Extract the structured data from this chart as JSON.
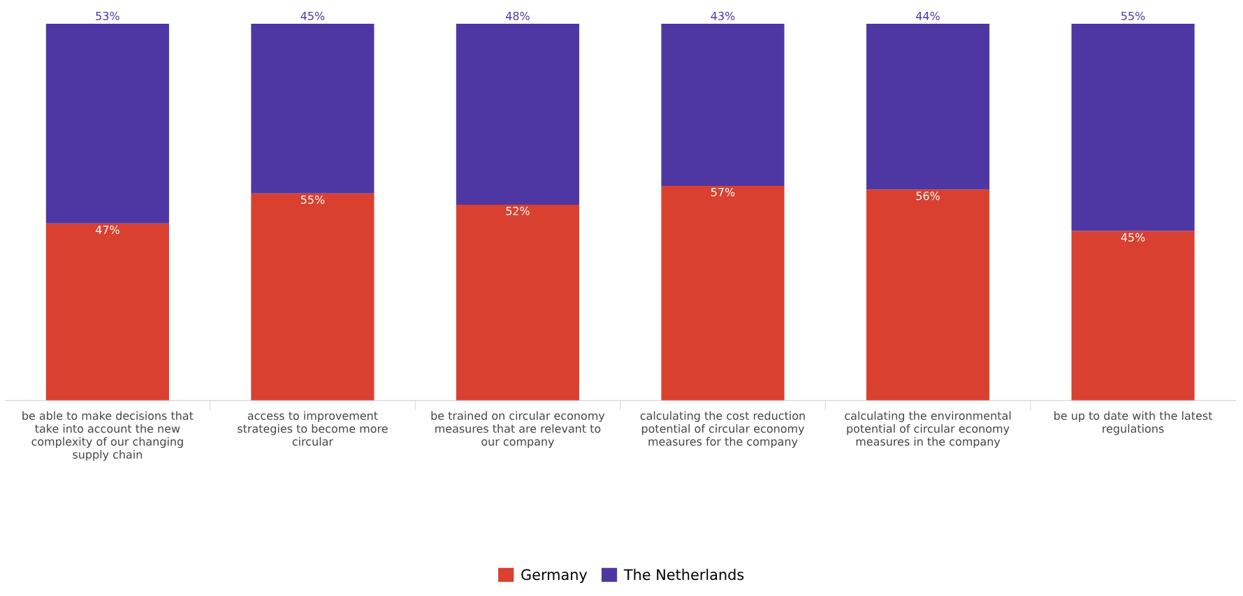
{
  "chart_data": {
    "type": "bar",
    "stacked": true,
    "grid": false,
    "legend": "bottom",
    "categories": [
      "be able to make decisions that take into account the new complexity of our changing supply chain",
      "access to improvement strategies to become more circular",
      "be trained on circular economy measures that are relevant to our company",
      "calculating the cost reduction potential of circular economy measures for the company",
      "calculating the environmental potential of circular economy measures in the company",
      "be up to date with the latest regulations"
    ],
    "series": [
      {
        "name": "Germany",
        "color": "#d94030",
        "values": [
          47,
          55,
          52,
          57,
          56,
          45
        ],
        "value_labels": [
          "47%",
          "55%",
          "52%",
          "57%",
          "56%",
          "45%"
        ]
      },
      {
        "name": "The Netherlands",
        "color": "#4f37a3",
        "values": [
          53,
          45,
          48,
          43,
          44,
          55
        ],
        "value_labels": [
          "53%",
          "45%",
          "48%",
          "43%",
          "44%",
          "55%"
        ]
      }
    ]
  }
}
